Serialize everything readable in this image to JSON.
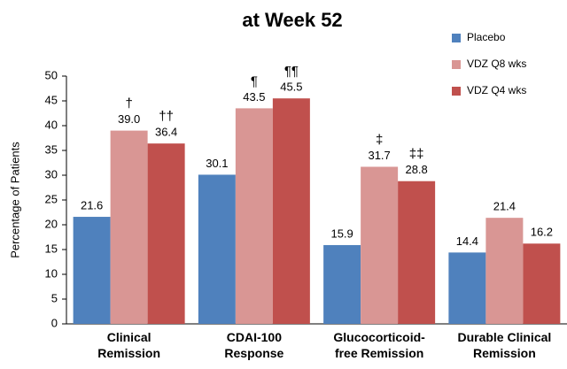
{
  "chart_data": {
    "type": "bar",
    "title": "at Week 52",
    "y_label": "Percentage of Patients",
    "categories": [
      "Clinical\nRemission",
      "CDAI-100\nResponse",
      "Glucocorticoid-\nfree Remission",
      "Durable Clinical\nRemission"
    ],
    "series": [
      {
        "name": "Placebo",
        "color": "#4f81bd",
        "values": [
          21.6,
          30.1,
          15.9,
          14.4
        ],
        "value_labels": [
          "21.6",
          "30.1",
          "15.9",
          "14.4"
        ]
      },
      {
        "name": "VDZ Q8 wks",
        "color": "#d99694",
        "values": [
          39,
          43.5,
          31.7,
          21.4
        ],
        "value_labels": [
          "39.0",
          "43.5",
          "31.7",
          "21.4"
        ],
        "markers": [
          "†",
          "¶",
          "‡",
          null
        ]
      },
      {
        "name": "VDZ Q4 wks",
        "color": "#c0504d",
        "values": [
          36.4,
          45.5,
          28.8,
          16.2
        ],
        "value_labels": [
          "36.4",
          "45.5",
          "28.8",
          "16.2"
        ],
        "markers": [
          "††",
          "¶¶",
          "‡‡",
          null
        ]
      }
    ],
    "ylim": [
      0,
      50
    ],
    "yticks": [
      0,
      5,
      10,
      15,
      20,
      25,
      30,
      35,
      40,
      45,
      50
    ],
    "grid": false,
    "legend": "upper right"
  }
}
